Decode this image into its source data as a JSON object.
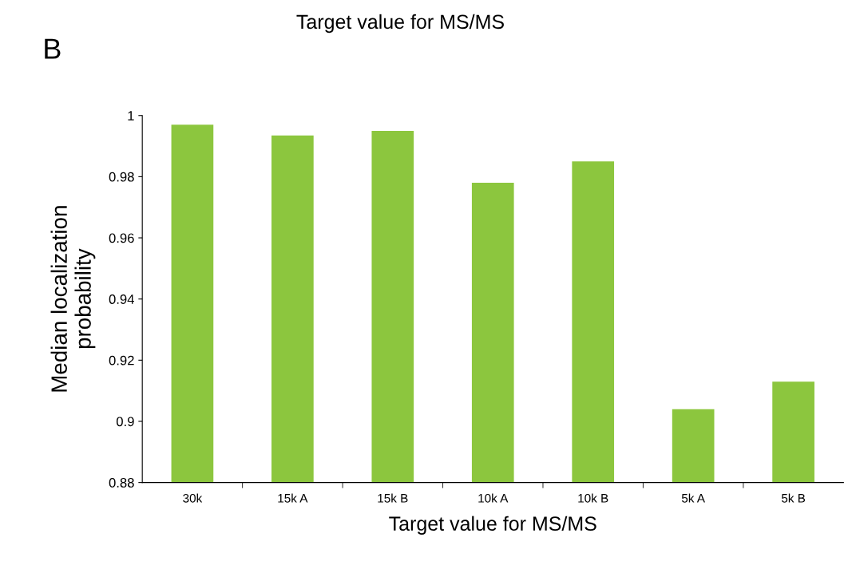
{
  "chart_data": {
    "type": "bar",
    "xlabel": "Target value for MS/MS",
    "ylabel": "Median localization\nprobability",
    "annotations": [
      "Target value for MS/MS",
      "B"
    ],
    "categories": [
      "30k",
      "15k A",
      "15k B",
      "10k A",
      "10k B",
      "5k A",
      "5k B"
    ],
    "values": [
      0.997,
      0.9935,
      0.995,
      0.978,
      0.985,
      0.904,
      0.913
    ],
    "color": "#8cc63e",
    "ylim": [
      0.88,
      1.0
    ],
    "yticks": [
      0.88,
      0.9,
      0.92,
      0.94,
      0.96,
      0.98,
      {
        "value": 1.0,
        "label": "1"
      }
    ],
    "grid": false,
    "legend": false
  }
}
